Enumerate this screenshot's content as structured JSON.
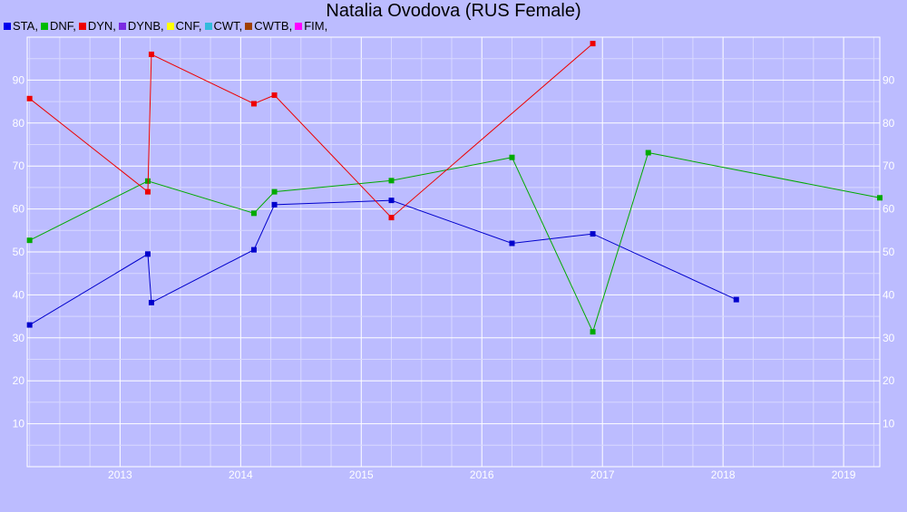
{
  "chart_data": {
    "type": "line",
    "title": "Natalia Ovodova (RUS Female)",
    "xlabel": "",
    "ylabel": "",
    "xlim": [
      2012.23,
      2019.3
    ],
    "ylim": [
      0,
      100
    ],
    "x_ticks": [
      2013,
      2014,
      2015,
      2016,
      2017,
      2018,
      2019
    ],
    "y_ticks": [
      10,
      20,
      30,
      40,
      50,
      60,
      70,
      80,
      90
    ],
    "grid": true,
    "legend_position": "top-left",
    "legend": [
      {
        "label": "STA,",
        "color": "#0000ee"
      },
      {
        "label": "DNF,",
        "color": "#00bb00"
      },
      {
        "label": "DYN,",
        "color": "#ee0000"
      },
      {
        "label": "DYNB,",
        "color": "#7b2be2"
      },
      {
        "label": "CNF,",
        "color": "#ffff00"
      },
      {
        "label": "CWT,",
        "color": "#33bbdd"
      },
      {
        "label": "CWTB,",
        "color": "#a04000"
      },
      {
        "label": "FIM,",
        "color": "#ff00ff"
      }
    ],
    "series": [
      {
        "name": "STA",
        "color": "#0000cc",
        "points": [
          {
            "x": 2012.25,
            "y": 33
          },
          {
            "x": 2013.23,
            "y": 49.5
          },
          {
            "x": 2013.26,
            "y": 38.2
          },
          {
            "x": 2014.11,
            "y": 50.5
          },
          {
            "x": 2014.28,
            "y": 61
          },
          {
            "x": 2015.25,
            "y": 62
          },
          {
            "x": 2016.25,
            "y": 52
          },
          {
            "x": 2016.92,
            "y": 54.2
          },
          {
            "x": 2018.11,
            "y": 38.9
          }
        ]
      },
      {
        "name": "DNF",
        "color": "#00aa00",
        "points": [
          {
            "x": 2012.25,
            "y": 52.7
          },
          {
            "x": 2013.23,
            "y": 66.5
          },
          {
            "x": 2014.11,
            "y": 59
          },
          {
            "x": 2014.28,
            "y": 64
          },
          {
            "x": 2015.25,
            "y": 66.6
          },
          {
            "x": 2016.25,
            "y": 72
          },
          {
            "x": 2016.92,
            "y": 31.4
          },
          {
            "x": 2017.38,
            "y": 73.1
          },
          {
            "x": 2019.3,
            "y": 62.6
          }
        ]
      },
      {
        "name": "DYN",
        "color": "#ee0000",
        "points": [
          {
            "x": 2012.25,
            "y": 85.7
          },
          {
            "x": 2013.23,
            "y": 64
          },
          {
            "x": 2013.26,
            "y": 96
          },
          {
            "x": 2014.11,
            "y": 84.5
          },
          {
            "x": 2014.28,
            "y": 86.5
          },
          {
            "x": 2015.25,
            "y": 58
          },
          {
            "x": 2016.92,
            "y": 98.5
          }
        ]
      }
    ]
  }
}
